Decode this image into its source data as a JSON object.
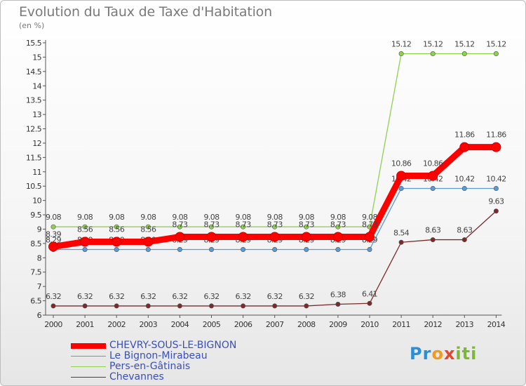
{
  "chart_data": {
    "type": "line",
    "title": "Evolution du Taux de Taxe d'Habitation",
    "unit_label": "(en %)",
    "x": [
      "2000",
      "2001",
      "2002",
      "2003",
      "2004",
      "2005",
      "2006",
      "2007",
      "2008",
      "2009",
      "2010",
      "2011",
      "2012",
      "2013",
      "2014"
    ],
    "ylim": [
      6,
      15.5
    ],
    "yticks": [
      "6",
      "6.5",
      "7",
      "7.5",
      "8",
      "8.5",
      "9",
      "9.5",
      "10",
      "10.5",
      "11",
      "11.5",
      "12",
      "12.5",
      "13",
      "13.5",
      "14",
      "14.5",
      "15",
      "15.5"
    ],
    "grid": false,
    "legend_position": "bottom-left",
    "series": [
      {
        "name": "Pers-en-Gâtinais",
        "color": "#8fd14f",
        "values": [
          9.08,
          9.08,
          9.08,
          9.08,
          9.08,
          9.08,
          9.08,
          9.08,
          9.08,
          9.08,
          9.08,
          15.12,
          15.12,
          15.12,
          15.12
        ]
      },
      {
        "name": "Le Bignon-Mirabeau",
        "color": "#5b9bd5",
        "values": [
          8.29,
          8.29,
          8.29,
          8.29,
          8.29,
          8.29,
          8.29,
          8.29,
          8.29,
          8.29,
          8.29,
          10.42,
          10.42,
          10.42,
          10.42
        ]
      },
      {
        "name": "Chevannes",
        "color": "#7a2a2a",
        "values": [
          6.32,
          6.32,
          6.32,
          6.32,
          6.32,
          6.32,
          6.32,
          6.32,
          6.32,
          6.38,
          6.41,
          8.54,
          8.63,
          8.63,
          9.63
        ]
      },
      {
        "name": "CHEVRY-SOUS-LE-BIGNON",
        "color": "#ff0000",
        "values": [
          8.39,
          8.56,
          8.56,
          8.56,
          8.73,
          8.73,
          8.73,
          8.73,
          8.73,
          8.73,
          8.73,
          10.86,
          10.86,
          11.86,
          11.86
        ]
      }
    ],
    "legend_order": [
      "CHEVRY-SOUS-LE-BIGNON",
      "Le Bignon-Mirabeau",
      "Pers-en-Gâtinais",
      "Chevannes"
    ]
  },
  "logo": {
    "p1": "Pr",
    "p2": "o",
    "p3": "x",
    "p4": "iti"
  }
}
